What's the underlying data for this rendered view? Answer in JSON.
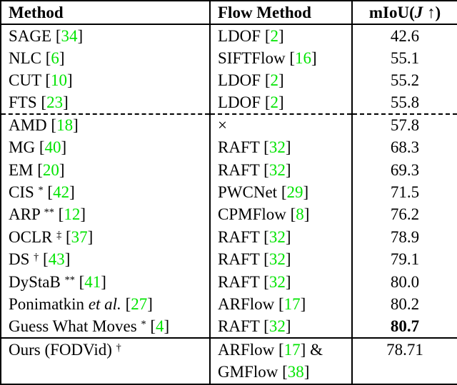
{
  "colors": {
    "cite_green": "#00e400",
    "text": "#000000",
    "border": "#000000"
  },
  "fmt": {
    "lb": "[",
    "rb": "]"
  },
  "header": {
    "method": "Method",
    "flow": "Flow Method",
    "miou_name": "mIoU",
    "miou_open": "(",
    "miou_metric": "J",
    "miou_arrow": "↑",
    "miou_close": ")"
  },
  "rows": [
    {
      "method": "SAGE",
      "mcite": "34",
      "flow": "LDOF",
      "fcite": "2",
      "miou": "42.6"
    },
    {
      "method": "NLC",
      "mcite": "6",
      "flow": "SIFTFlow",
      "fcite": "16",
      "miou": "55.1"
    },
    {
      "method": "CUT",
      "mcite": "10",
      "flow": "LDOF",
      "fcite": "2",
      "miou": "55.2"
    },
    {
      "method": "FTS",
      "mcite": "23",
      "flow": "LDOF",
      "fcite": "2",
      "miou": "55.8"
    },
    {
      "method": "AMD",
      "mcite": "18",
      "flow": "×",
      "miou": "57.8"
    },
    {
      "method": "MG",
      "mcite": "40",
      "flow": "RAFT",
      "fcite": "32",
      "miou": "68.3"
    },
    {
      "method": "EM",
      "mcite": "20",
      "flow": "RAFT",
      "fcite": "32",
      "miou": "69.3"
    },
    {
      "method": "CIS",
      "sup": "*",
      "mcite": "42",
      "flow": "PWCNet",
      "fcite": "29",
      "miou": "71.5"
    },
    {
      "method": "ARP",
      "sup": "**",
      "mcite": "12",
      "flow": "CPMFlow",
      "fcite": "8",
      "miou": "76.2"
    },
    {
      "method": "OCLR",
      "sup": "‡",
      "mcite": "37",
      "flow": "RAFT",
      "fcite": "32",
      "miou": "78.9"
    },
    {
      "method": "DS",
      "sup": "†",
      "mcite": "43",
      "flow": "RAFT",
      "fcite": "32",
      "miou": "79.1"
    },
    {
      "method": "DyStaB",
      "sup": "**",
      "mcite": "41",
      "flow": "RAFT",
      "fcite": "32",
      "miou": "80.0"
    },
    {
      "method": "Ponimatkin",
      "method_italic": "et al.",
      "mcite": "27",
      "flow": "ARFlow",
      "fcite": "17",
      "miou": "80.2"
    },
    {
      "method": "Guess What Moves",
      "sup": "*",
      "mcite": "4",
      "flow": "RAFT",
      "fcite": "32",
      "miou": "80.7"
    },
    {
      "method": "Ours (FODVid)",
      "sup": "†",
      "flow": "ARFlow",
      "fcite": "17",
      "joiner": "&",
      "flow2": "GMFlow",
      "fcite2": "38",
      "miou": "78.71"
    }
  ]
}
